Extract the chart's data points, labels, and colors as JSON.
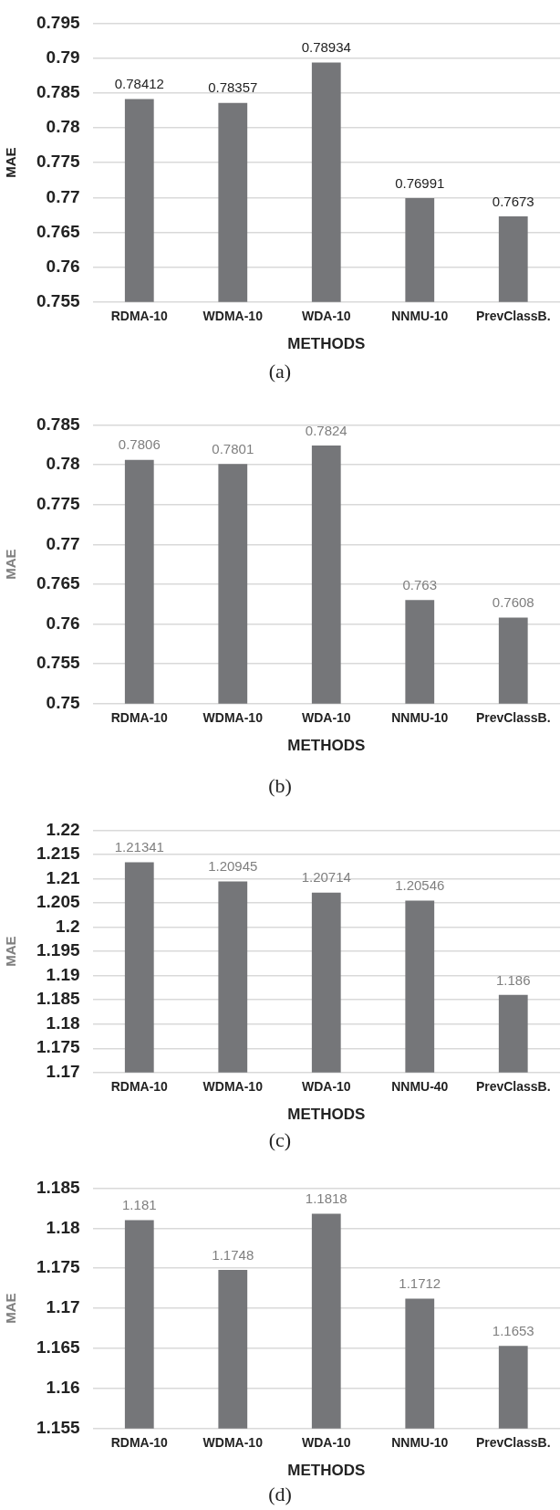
{
  "chart_data": [
    {
      "type": "bar",
      "xlabel": "METHODS",
      "ylabel": "MAE",
      "annotations": [
        "(a)"
      ],
      "categories": [
        "RDMA-10",
        "WDMA-10",
        "WDA-10",
        "NNMU-10",
        "PrevClassB."
      ],
      "values": [
        0.78412,
        0.78357,
        0.78934,
        0.76991,
        0.7673
      ],
      "color": "#757679",
      "ylim": [
        0.755,
        0.795
      ],
      "yticks": [
        0.755,
        0.76,
        0.765,
        0.77,
        0.775,
        0.78,
        0.785,
        0.79,
        0.795
      ],
      "grid": "y",
      "data_labels": true,
      "legend": false
    },
    {
      "type": "bar",
      "xlabel": "METHODS",
      "ylabel": "MAE",
      "annotations": [
        "(b)"
      ],
      "categories": [
        "RDMA-10",
        "WDMA-10",
        "WDA-10",
        "NNMU-10",
        "PrevClassB."
      ],
      "values": [
        0.7806,
        0.7801,
        0.7824,
        0.763,
        0.7608
      ],
      "color": "#757679",
      "ylim": [
        0.75,
        0.785
      ],
      "yticks": [
        0.75,
        0.755,
        0.76,
        0.765,
        0.77,
        0.775,
        0.78,
        0.785
      ],
      "grid": "y",
      "data_labels": true,
      "legend": false
    },
    {
      "type": "bar",
      "xlabel": "METHODS",
      "ylabel": "MAE",
      "annotations": [
        "(c)"
      ],
      "categories": [
        "RDMA-10",
        "WDMA-10",
        "WDA-10",
        "NNMU-40",
        "PrevClassB."
      ],
      "values": [
        1.21341,
        1.20945,
        1.20714,
        1.20546,
        1.186
      ],
      "color": "#757679",
      "ylim": [
        1.17,
        1.22
      ],
      "yticks": [
        1.17,
        1.175,
        1.18,
        1.185,
        1.19,
        1.195,
        1.2,
        1.205,
        1.21,
        1.215,
        1.22
      ],
      "grid": "y",
      "data_labels": true,
      "legend": false
    },
    {
      "type": "bar",
      "xlabel": "METHODS",
      "ylabel": "MAE",
      "annotations": [
        "(d)"
      ],
      "categories": [
        "RDMA-10",
        "WDMA-10",
        "WDA-10",
        "NNMU-10",
        "PrevClassB."
      ],
      "values": [
        1.181,
        1.1748,
        1.1818,
        1.1712,
        1.1653
      ],
      "color": "#757679",
      "ylim": [
        1.155,
        1.185
      ],
      "yticks": [
        1.155,
        1.16,
        1.165,
        1.17,
        1.175,
        1.18,
        1.185
      ],
      "grid": "y",
      "data_labels": true,
      "legend": false
    }
  ]
}
